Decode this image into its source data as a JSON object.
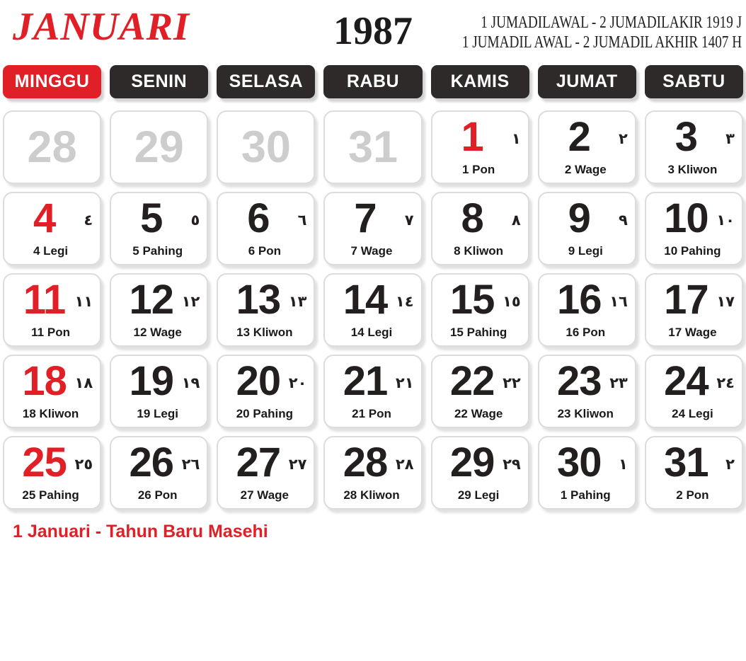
{
  "header": {
    "month": "JANUARI",
    "year": "1987",
    "era_line_javanese": "1 JUMADILAWAL - 2 JUMADILAKIR 1919 J",
    "era_line_hijri": "1 JUMADIL AWAL - 2 JUMADIL AKHIR 1407 H"
  },
  "weekday_header": [
    {
      "label": "MINGGU",
      "is_sunday": true
    },
    {
      "label": "SENIN",
      "is_sunday": false
    },
    {
      "label": "SELASA",
      "is_sunday": false
    },
    {
      "label": "RABU",
      "is_sunday": false
    },
    {
      "label": "KAMIS",
      "is_sunday": false
    },
    {
      "label": "JUMAT",
      "is_sunday": false
    },
    {
      "label": "SABTU",
      "is_sunday": false
    }
  ],
  "weeks": [
    [
      {
        "date": "28",
        "style": "muted"
      },
      {
        "date": "29",
        "style": "muted"
      },
      {
        "date": "30",
        "style": "muted"
      },
      {
        "date": "31",
        "style": "muted"
      },
      {
        "date": "1",
        "arabic": "١",
        "pasaran": "1 Pon",
        "style": "red"
      },
      {
        "date": "2",
        "arabic": "٢",
        "pasaran": "2 Wage",
        "style": "normal"
      },
      {
        "date": "3",
        "arabic": "٣",
        "pasaran": "3 Kliwon",
        "style": "normal"
      }
    ],
    [
      {
        "date": "4",
        "arabic": "٤",
        "pasaran": "4 Legi",
        "style": "red"
      },
      {
        "date": "5",
        "arabic": "٥",
        "pasaran": "5 Pahing",
        "style": "normal"
      },
      {
        "date": "6",
        "arabic": "٦",
        "pasaran": "6 Pon",
        "style": "normal"
      },
      {
        "date": "7",
        "arabic": "٧",
        "pasaran": "7 Wage",
        "style": "normal"
      },
      {
        "date": "8",
        "arabic": "٨",
        "pasaran": "8 Kliwon",
        "style": "normal"
      },
      {
        "date": "9",
        "arabic": "٩",
        "pasaran": "9 Legi",
        "style": "normal"
      },
      {
        "date": "10",
        "arabic": "١٠",
        "pasaran": "10 Pahing",
        "style": "normal"
      }
    ],
    [
      {
        "date": "11",
        "arabic": "١١",
        "pasaran": "11 Pon",
        "style": "red"
      },
      {
        "date": "12",
        "arabic": "١٢",
        "pasaran": "12 Wage",
        "style": "normal"
      },
      {
        "date": "13",
        "arabic": "١٣",
        "pasaran": "13 Kliwon",
        "style": "normal"
      },
      {
        "date": "14",
        "arabic": "١٤",
        "pasaran": "14 Legi",
        "style": "normal"
      },
      {
        "date": "15",
        "arabic": "١٥",
        "pasaran": "15 Pahing",
        "style": "normal"
      },
      {
        "date": "16",
        "arabic": "١٦",
        "pasaran": "16 Pon",
        "style": "normal"
      },
      {
        "date": "17",
        "arabic": "١٧",
        "pasaran": "17 Wage",
        "style": "normal"
      }
    ],
    [
      {
        "date": "18",
        "arabic": "١٨",
        "pasaran": "18 Kliwon",
        "style": "red"
      },
      {
        "date": "19",
        "arabic": "١٩",
        "pasaran": "19 Legi",
        "style": "normal"
      },
      {
        "date": "20",
        "arabic": "٢٠",
        "pasaran": "20 Pahing",
        "style": "normal"
      },
      {
        "date": "21",
        "arabic": "٢١",
        "pasaran": "21 Pon",
        "style": "normal"
      },
      {
        "date": "22",
        "arabic": "٢٢",
        "pasaran": "22 Wage",
        "style": "normal"
      },
      {
        "date": "23",
        "arabic": "٢٣",
        "pasaran": "23 Kliwon",
        "style": "normal"
      },
      {
        "date": "24",
        "arabic": "٢٤",
        "pasaran": "24 Legi",
        "style": "normal"
      }
    ],
    [
      {
        "date": "25",
        "arabic": "٢٥",
        "pasaran": "25 Pahing",
        "style": "red"
      },
      {
        "date": "26",
        "arabic": "٢٦",
        "pasaran": "26 Pon",
        "style": "normal"
      },
      {
        "date": "27",
        "arabic": "٢٧",
        "pasaran": "27 Wage",
        "style": "normal"
      },
      {
        "date": "28",
        "arabic": "٢٨",
        "pasaran": "28 Kliwon",
        "style": "normal"
      },
      {
        "date": "29",
        "arabic": "٢٩",
        "pasaran": "29 Legi",
        "style": "normal"
      },
      {
        "date": "30",
        "arabic": "١",
        "pasaran": "1 Pahing",
        "style": "normal"
      },
      {
        "date": "31",
        "arabic": "٢",
        "pasaran": "2 Pon",
        "style": "normal"
      }
    ]
  ],
  "footer": {
    "holiday_note": "1 Januari - Tahun Baru Masehi"
  },
  "colors": {
    "red": "#e01f26",
    "weekday_dark": "#2e2a2a",
    "muted_gray": "#cdcdcd",
    "date_black": "#231f1f"
  }
}
